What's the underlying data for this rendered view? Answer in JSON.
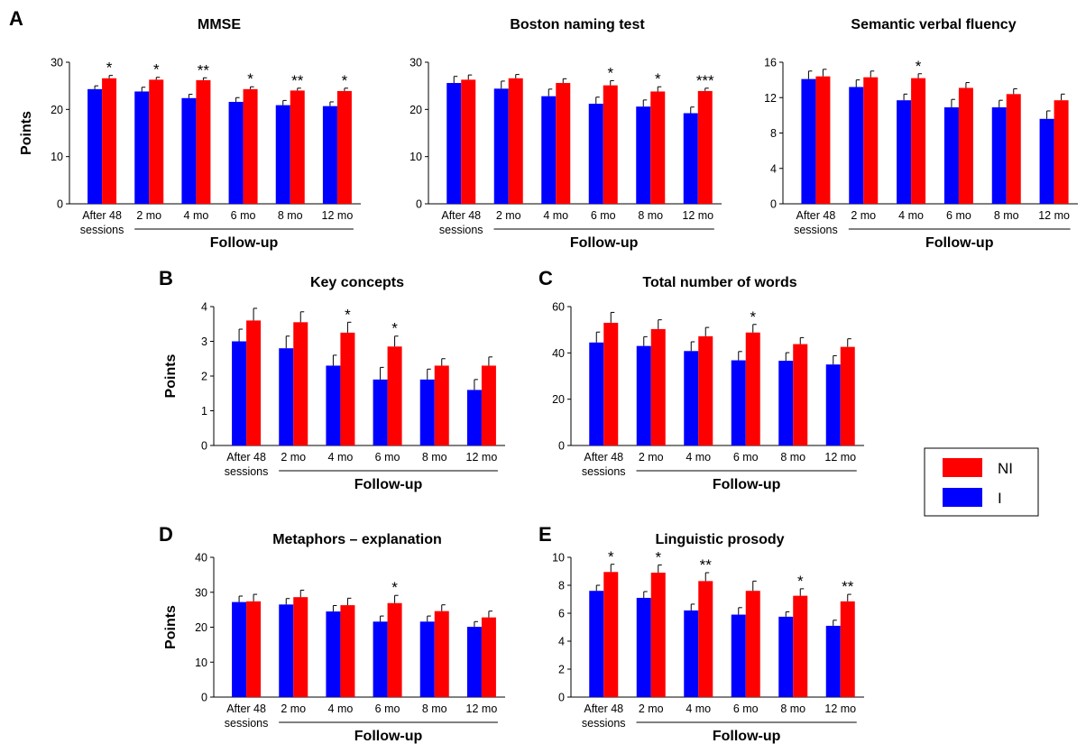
{
  "legend": [
    {
      "label": "NI",
      "color": "#ff0000"
    },
    {
      "label": "I",
      "color": "#0000ff"
    }
  ],
  "x_categories": [
    "After 48",
    "2 mo",
    "4 mo",
    "6 mo",
    "8 mo",
    "12 mo"
  ],
  "x_sub_label": "sessions",
  "followup_label": "Follow-up",
  "y_axis_label": "Points",
  "chart_data": [
    {
      "panel": "A",
      "type": "bar",
      "title": "MMSE",
      "ylabel": "Points",
      "ylim": [
        0,
        30
      ],
      "yticks": [
        0,
        10,
        20,
        30
      ],
      "series": [
        {
          "name": "I",
          "values": [
            24.3,
            23.8,
            22.4,
            21.6,
            20.9,
            20.7
          ],
          "errors": [
            0.7,
            0.9,
            0.8,
            0.9,
            1.0,
            0.9
          ]
        },
        {
          "name": "NI",
          "values": [
            26.6,
            26.3,
            26.2,
            24.3,
            24.0,
            23.9
          ],
          "errors": [
            0.6,
            0.5,
            0.5,
            0.5,
            0.5,
            0.6
          ]
        }
      ],
      "significance": [
        "*",
        "*",
        "**",
        "*",
        "**",
        "*"
      ]
    },
    {
      "panel": "",
      "type": "bar",
      "title": "Boston naming test",
      "ylabel": "",
      "ylim": [
        0,
        30
      ],
      "yticks": [
        0,
        10,
        20,
        30
      ],
      "series": [
        {
          "name": "I",
          "values": [
            25.6,
            24.4,
            22.8,
            21.2,
            20.6,
            19.2
          ],
          "errors": [
            1.4,
            1.6,
            1.5,
            1.4,
            1.4,
            1.3
          ]
        },
        {
          "name": "NI",
          "values": [
            26.3,
            26.6,
            25.6,
            25.1,
            23.8,
            23.9
          ],
          "errors": [
            1.0,
            0.8,
            0.9,
            1.0,
            1.0,
            0.6
          ]
        }
      ],
      "significance": [
        "",
        "",
        "",
        "*",
        "*",
        "***"
      ]
    },
    {
      "panel": "",
      "type": "bar",
      "title": "Semantic verbal fluency",
      "ylabel": "",
      "ylim": [
        0,
        16
      ],
      "yticks": [
        0,
        4,
        8,
        12,
        16
      ],
      "series": [
        {
          "name": "I",
          "values": [
            14.1,
            13.2,
            11.7,
            10.9,
            10.9,
            9.6
          ],
          "errors": [
            0.9,
            0.8,
            0.7,
            0.9,
            0.8,
            0.9
          ]
        },
        {
          "name": "NI",
          "values": [
            14.4,
            14.3,
            14.2,
            13.1,
            12.4,
            11.7
          ],
          "errors": [
            0.8,
            0.7,
            0.5,
            0.6,
            0.6,
            0.7
          ]
        }
      ],
      "significance": [
        "",
        "",
        "*",
        "",
        "",
        ""
      ]
    },
    {
      "panel": "B",
      "type": "bar",
      "title": "Key concepts",
      "ylabel": "Points",
      "ylim": [
        0,
        4
      ],
      "yticks": [
        0,
        1,
        2,
        3,
        4
      ],
      "series": [
        {
          "name": "I",
          "values": [
            3.0,
            2.8,
            2.3,
            1.9,
            1.9,
            1.6
          ],
          "errors": [
            0.35,
            0.35,
            0.3,
            0.35,
            0.3,
            0.3
          ]
        },
        {
          "name": "NI",
          "values": [
            3.6,
            3.55,
            3.25,
            2.85,
            2.3,
            2.3
          ],
          "errors": [
            0.35,
            0.3,
            0.3,
            0.3,
            0.2,
            0.25
          ]
        }
      ],
      "significance": [
        "",
        "",
        "*",
        "*",
        "",
        ""
      ]
    },
    {
      "panel": "C",
      "type": "bar",
      "title": "Total number of words",
      "ylabel": "",
      "ylim": [
        0,
        60
      ],
      "yticks": [
        0,
        20,
        40,
        60
      ],
      "series": [
        {
          "name": "I",
          "values": [
            44.5,
            43.0,
            40.8,
            36.8,
            36.6,
            35.0
          ],
          "errors": [
            4.5,
            4.0,
            4.0,
            3.8,
            3.5,
            3.8
          ]
        },
        {
          "name": "NI",
          "values": [
            53.0,
            50.3,
            47.2,
            48.8,
            43.8,
            42.6
          ],
          "errors": [
            4.5,
            4.0,
            3.8,
            3.5,
            2.8,
            3.5
          ]
        }
      ],
      "significance": [
        "",
        "",
        "",
        "*",
        "",
        ""
      ]
    },
    {
      "panel": "D",
      "type": "bar",
      "title": "Metaphors – explanation",
      "ylabel": "Points",
      "ylim": [
        0,
        40
      ],
      "yticks": [
        0,
        10,
        20,
        30,
        40
      ],
      "series": [
        {
          "name": "I",
          "values": [
            27.2,
            26.5,
            24.5,
            21.6,
            21.6,
            20.1
          ],
          "errors": [
            1.7,
            1.7,
            1.7,
            1.6,
            1.6,
            1.5
          ]
        },
        {
          "name": "NI",
          "values": [
            27.4,
            28.6,
            26.3,
            26.9,
            24.6,
            22.8
          ],
          "errors": [
            2.0,
            2.0,
            2.0,
            2.2,
            1.8,
            1.8
          ]
        }
      ],
      "significance": [
        "",
        "",
        "",
        "*",
        "",
        ""
      ]
    },
    {
      "panel": "E",
      "type": "bar",
      "title": "Linguistic prosody",
      "ylabel": "",
      "ylim": [
        0,
        10
      ],
      "yticks": [
        0,
        2,
        4,
        6,
        8,
        10
      ],
      "series": [
        {
          "name": "I",
          "values": [
            7.6,
            7.1,
            6.2,
            5.9,
            5.75,
            5.1
          ],
          "errors": [
            0.4,
            0.45,
            0.45,
            0.5,
            0.35,
            0.4
          ]
        },
        {
          "name": "NI",
          "values": [
            8.95,
            8.9,
            8.3,
            7.6,
            7.25,
            6.85
          ],
          "errors": [
            0.55,
            0.55,
            0.6,
            0.7,
            0.5,
            0.5
          ]
        }
      ],
      "significance": [
        "*",
        "*",
        "**",
        "",
        "*",
        "**"
      ]
    }
  ]
}
